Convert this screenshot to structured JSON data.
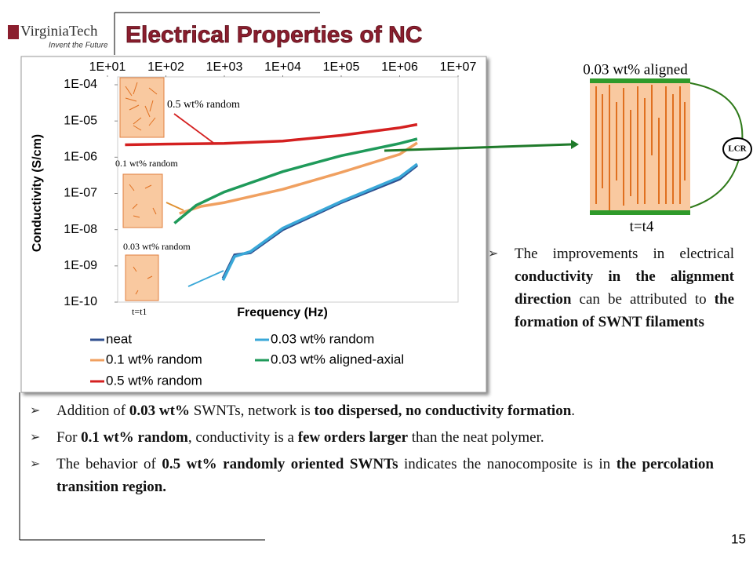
{
  "header": {
    "logo": "VirginiaTech",
    "tagline": "Invent the Future",
    "title": "Electrical Properties of NC"
  },
  "chart_data": {
    "type": "line",
    "xlabel": "Frequency (Hz)",
    "ylabel": "Conductivity (S/cm)",
    "xscale": "log",
    "yscale": "log",
    "xlim": [
      10,
      10000000
    ],
    "ylim": [
      1e-10,
      0.0001
    ],
    "xticks": [
      {
        "value": 10,
        "label": "1E+01"
      },
      {
        "value": 100,
        "label": "1E+02"
      },
      {
        "value": 1000,
        "label": "1E+03"
      },
      {
        "value": 10000,
        "label": "1E+04"
      },
      {
        "value": 100000,
        "label": "1E+05"
      },
      {
        "value": 1000000,
        "label": "1E+06"
      },
      {
        "value": 10000000,
        "label": "1E+07"
      }
    ],
    "yticks": [
      {
        "value": 0.0001,
        "label": "1E-04"
      },
      {
        "value": 1e-05,
        "label": "1E-05"
      },
      {
        "value": 1e-06,
        "label": "1E-06"
      },
      {
        "value": 1e-07,
        "label": "1E-07"
      },
      {
        "value": 1e-08,
        "label": "1E-08"
      },
      {
        "value": 1e-09,
        "label": "1E-09"
      },
      {
        "value": 1e-10,
        "label": "1E-10"
      }
    ],
    "series": [
      {
        "name": "neat",
        "color": "#2f4f8f",
        "x": [
          950,
          1500,
          2800,
          10000,
          100000,
          1000000,
          2000000
        ],
        "values": [
          4.5e-10,
          2e-09,
          2.3e-09,
          1e-08,
          5.6e-08,
          2.5e-07,
          6e-07
        ]
      },
      {
        "name": "0.1 wt% random",
        "color": "#f0a060",
        "x": [
          170,
          400,
          1000,
          10000,
          100000,
          1000000,
          2000000
        ],
        "values": [
          2.8e-08,
          4.4e-08,
          5.6e-08,
          1.3e-07,
          3.8e-07,
          1.2e-06,
          2.5e-06
        ]
      },
      {
        "name": "0.5 wt% random",
        "color": "#d42020",
        "x": [
          20,
          100,
          1000,
          10000,
          100000,
          1000000,
          2000000
        ],
        "values": [
          2.2e-06,
          2.3e-06,
          2.4e-06,
          2.8e-06,
          4e-06,
          6.5e-06,
          8e-06
        ]
      },
      {
        "name": "0.03 wt% random",
        "color": "#3aa8d8",
        "x": [
          950,
          1500,
          2800,
          10000,
          100000,
          1000000,
          2000000
        ],
        "values": [
          4e-10,
          1.8e-09,
          2.5e-09,
          1.1e-08,
          6e-08,
          2.8e-07,
          6.5e-07
        ]
      },
      {
        "name": "0.03 wt% aligned-axial",
        "color": "#1f9a5a",
        "x": [
          140,
          330,
          1000,
          10000,
          100000,
          1000000,
          2000000
        ],
        "values": [
          1.5e-08,
          4.7e-08,
          1.1e-07,
          4e-07,
          1.1e-06,
          2.4e-06,
          3.2e-06
        ]
      }
    ]
  },
  "insets": {
    "a": "0.5 wt% random",
    "b": "0.1 wt% random",
    "c": "0.03 wt% random",
    "d": "t=t1"
  },
  "aligned": {
    "title": "0.03 wt% aligned",
    "meter": "LCR",
    "time": "t=t4"
  },
  "right_bullet": {
    "runs": [
      {
        "text": "The improvements in electrical ",
        "bold": false
      },
      {
        "text": "conductivity in the alignment direction",
        "bold": true
      },
      {
        "text": " can be attributed to ",
        "bold": false
      },
      {
        "text": "the formation of SWNT filaments",
        "bold": true
      }
    ]
  },
  "bullets": [
    {
      "runs": [
        {
          "text": "Addition of ",
          "bold": false
        },
        {
          "text": "0.03 wt%",
          "bold": true
        },
        {
          "text": " SWNTs, network is ",
          "bold": false
        },
        {
          "text": "too dispersed, no conductivity formation",
          "bold": true
        },
        {
          "text": ".",
          "bold": false
        }
      ]
    },
    {
      "runs": [
        {
          "text": "For ",
          "bold": false
        },
        {
          "text": "0.1 wt% random",
          "bold": true
        },
        {
          "text": ", conductivity is a ",
          "bold": false
        },
        {
          "text": "few orders larger",
          "bold": true
        },
        {
          "text": " than the neat polymer.",
          "bold": false
        }
      ]
    },
    {
      "runs": [
        {
          "text": "The behavior of ",
          "bold": false
        },
        {
          "text": "0.5 wt% randomly oriented SWNTs",
          "bold": true
        },
        {
          "text": " indicates the nanocomposite is in ",
          "bold": false
        },
        {
          "text": "the percolation transition region.",
          "bold": true
        }
      ]
    }
  ],
  "page_number": "15"
}
